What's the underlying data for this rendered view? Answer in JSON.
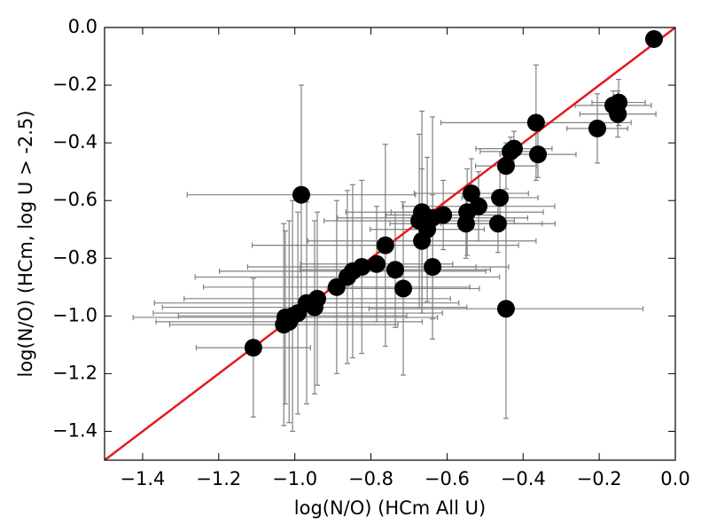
{
  "chart_data": {
    "type": "scatter",
    "x_label": "log(N/O) (HCm All U)",
    "y_label": "log(N/O) (HCm, log U > -2.5)",
    "xlim": [
      -1.5,
      0.0
    ],
    "ylim": [
      -1.5,
      0.0
    ],
    "xticks": [
      {
        "value": -1.4,
        "label": "−1.4"
      },
      {
        "value": -1.2,
        "label": "−1.2"
      },
      {
        "value": -1.0,
        "label": "−1.0"
      },
      {
        "value": -0.8,
        "label": "−0.8"
      },
      {
        "value": -0.6,
        "label": "−0.6"
      },
      {
        "value": -0.4,
        "label": "−0.4"
      },
      {
        "value": -0.2,
        "label": "−0.2"
      },
      {
        "value": 0.0,
        "label": "0.0"
      }
    ],
    "yticks": [
      {
        "value": -1.4,
        "label": "−1.4"
      },
      {
        "value": -1.2,
        "label": "−1.2"
      },
      {
        "value": -1.0,
        "label": "−1.0"
      },
      {
        "value": -0.8,
        "label": "−0.8"
      },
      {
        "value": -0.6,
        "label": "−0.6"
      },
      {
        "value": -0.4,
        "label": "−0.4"
      },
      {
        "value": -0.2,
        "label": "−0.2"
      },
      {
        "value": 0.0,
        "label": "0.0"
      }
    ],
    "color": "#000000",
    "error_color": "#808080",
    "x": [
      -0.056,
      -0.149,
      -0.163,
      -0.151,
      -0.205,
      -0.366,
      -0.361,
      -0.424,
      -0.433,
      -0.445,
      -0.461,
      -0.466,
      -0.445,
      -0.536,
      -0.517,
      -0.547,
      -0.55,
      -0.61,
      -0.638,
      -0.666,
      -0.673,
      -0.652,
      -0.666,
      -0.638,
      -0.715,
      -0.736,
      -0.762,
      -0.785,
      -0.824,
      -0.848,
      -0.862,
      -0.89,
      -0.941,
      -0.948,
      -0.969,
      -0.983,
      -0.992,
      -1.006,
      -1.015,
      -1.029,
      -1.025,
      -1.109
    ],
    "values": [
      -0.04,
      -0.26,
      -0.27,
      -0.3,
      -0.35,
      -0.33,
      -0.44,
      -0.42,
      -0.43,
      -0.48,
      -0.59,
      -0.68,
      -0.975,
      -0.575,
      -0.62,
      -0.64,
      -0.68,
      -0.65,
      -0.66,
      -0.64,
      -0.67,
      -0.7,
      -0.74,
      -0.83,
      -0.905,
      -0.84,
      -0.755,
      -0.82,
      -0.83,
      -0.845,
      -0.865,
      -0.9,
      -0.94,
      -0.97,
      -0.955,
      -0.58,
      -0.99,
      -1.0,
      -1.02,
      -1.03,
      -1.005,
      -1.11
    ],
    "xerr": [
      0.02,
      0.07,
      0.1,
      0.1,
      0.08,
      0.25,
      0.1,
      0.1,
      0.08,
      0.08,
      0.1,
      0.15,
      0.36,
      0.15,
      0.2,
      0.2,
      0.2,
      0.15,
      0.25,
      0.2,
      0.25,
      0.15,
      0.3,
      0.2,
      0.2,
      0.25,
      0.35,
      0.2,
      0.3,
      0.35,
      0.4,
      0.35,
      0.35,
      0.4,
      0.4,
      0.3,
      0.38,
      0.3,
      0.35,
      0.3,
      0.4,
      0.15
    ],
    "yerr": [
      0.02,
      0.08,
      0.05,
      0.08,
      0.12,
      0.2,
      0.08,
      0.06,
      0.05,
      0.08,
      0.1,
      0.1,
      0.38,
      0.12,
      0.12,
      0.15,
      0.12,
      0.12,
      0.35,
      0.35,
      0.3,
      0.25,
      0.25,
      0.25,
      0.3,
      0.2,
      0.35,
      0.2,
      0.3,
      0.3,
      0.3,
      0.3,
      0.3,
      0.3,
      0.35,
      0.38,
      0.35,
      0.4,
      0.35,
      0.35,
      0.3,
      0.24
    ],
    "reference_line": {
      "x": [
        -1.5,
        0.0
      ],
      "y": [
        -1.5,
        0.0
      ],
      "color": "#e41a1c"
    }
  }
}
